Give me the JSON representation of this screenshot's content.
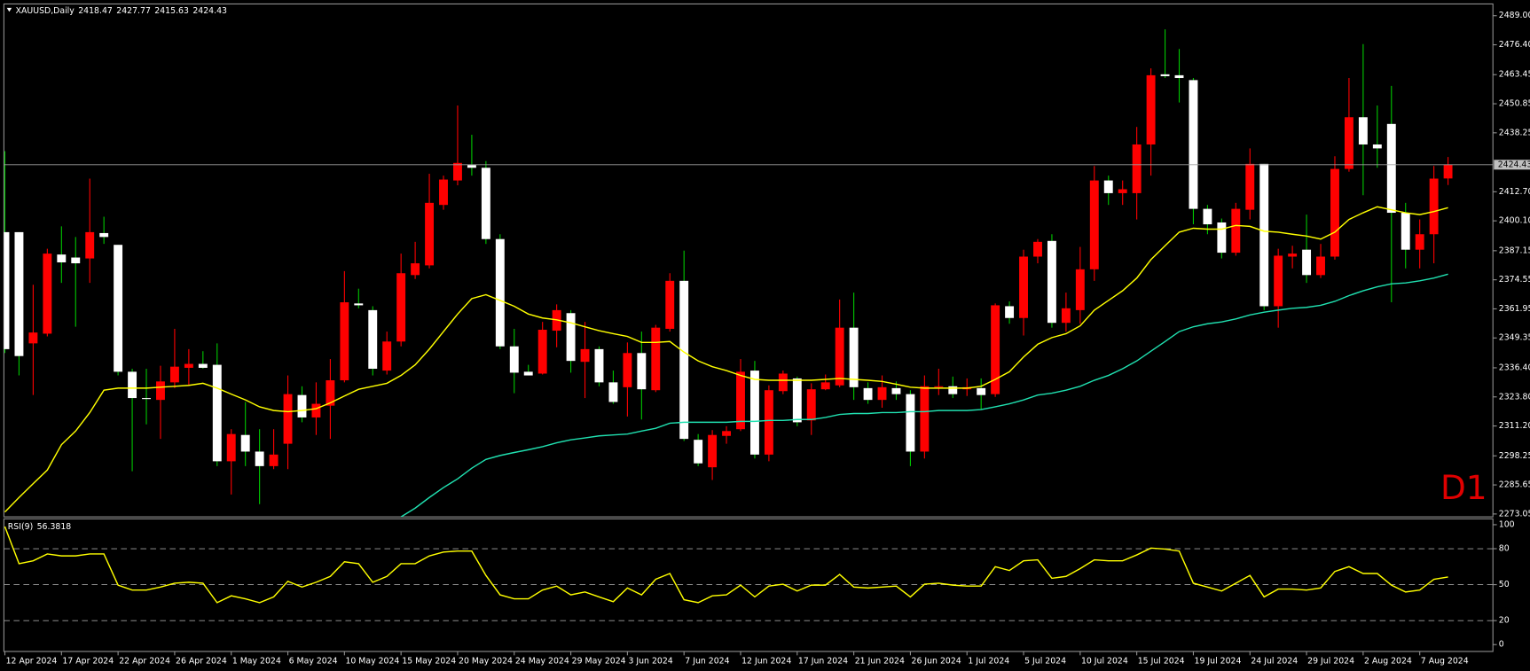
{
  "symbol": "XAUUSD,Daily",
  "timeframe_label": "D1",
  "chart_data": [
    {
      "type": "candlestick",
      "categories": [
        "12 Apr 2024",
        null,
        null,
        null,
        "17 Apr 2024",
        null,
        null,
        null,
        "22 Apr 2024",
        null,
        null,
        null,
        "26 Apr 2024",
        null,
        null,
        null,
        "1 May 2024",
        null,
        null,
        null,
        "6 May 2024",
        null,
        null,
        null,
        "10 May 2024",
        null,
        null,
        null,
        "15 May 2024",
        null,
        null,
        null,
        "20 May 2024",
        null,
        null,
        null,
        "24 May 2024",
        null,
        null,
        null,
        "29 May 2024",
        null,
        null,
        null,
        "3 Jun 2024",
        null,
        null,
        null,
        "7 Jun 2024",
        null,
        null,
        null,
        "12 Jun 2024",
        null,
        null,
        null,
        "17 Jun 2024",
        null,
        null,
        null,
        "21 Jun 2024",
        null,
        null,
        null,
        "26 Jun 2024",
        null,
        null,
        null,
        "1 Jul 2024",
        null,
        null,
        null,
        "5 Jul 2024",
        null,
        null,
        null,
        "10 Jul 2024",
        null,
        null,
        null,
        "15 Jul 2024",
        null,
        null,
        null,
        "19 Jul 2024",
        null,
        null,
        null,
        "24 Jul 2024",
        null,
        null,
        null,
        "29 Jul 2024",
        null,
        null,
        null,
        "2 Aug 2024",
        null,
        null,
        null,
        "7 Aug 2024",
        null,
        null
      ],
      "open": [
        2395.2,
        2395.2,
        2347.0,
        2351.2,
        2385.5,
        2384.2,
        2383.8,
        2394.8,
        2389.7,
        2334.7,
        2323.3,
        2322.5,
        2330.1,
        2336.4,
        2338.1,
        2337.7,
        2295.9,
        2307.3,
        2300.1,
        2293.8,
        2303.5,
        2324.6,
        2314.9,
        2320.0,
        2331.0,
        2364.3,
        2361.4,
        2335.2,
        2347.8,
        2376.6,
        2380.8,
        2407.0,
        2417.6,
        2424.3,
        2423.1,
        2392.2,
        2345.7,
        2334.7,
        2333.9,
        2352.5,
        2360.1,
        2339.0,
        2344.5,
        2330.1,
        2328.0,
        2342.8,
        2326.7,
        2353.3,
        2374.1,
        2305.2,
        2293.3,
        2306.9,
        2309.8,
        2335.2,
        2298.8,
        2326.3,
        2331.8,
        2313.6,
        2327.1,
        2328.8,
        2353.8,
        2327.6,
        2322.5,
        2327.6,
        2325.0,
        2300.1,
        2328.0,
        2328.4,
        2327.1,
        2327.6,
        2325.0,
        2363.1,
        2358.0,
        2384.6,
        2391.4,
        2355.9,
        2361.4,
        2379.1,
        2417.6,
        2412.1,
        2412.1,
        2433.2,
        2463.6,
        2463.2,
        2461.1,
        2405.3,
        2399.4,
        2386.3,
        2404.9,
        2424.8,
        2363.1,
        2384.6,
        2387.6,
        2376.6,
        2384.6,
        2422.6,
        2445.0,
        2433.2,
        2442.1,
        2403.6,
        2387.6,
        2394.3,
        2418.47
      ],
      "high": [
        2430.3,
        2395.2,
        2372.4,
        2388.0,
        2397.7,
        2393.1,
        2418.4,
        2401.9,
        2389.7,
        2336.0,
        2336.0,
        2337.3,
        2353.3,
        2344.5,
        2343.6,
        2347.0,
        2309.8,
        2321.6,
        2309.8,
        2309.8,
        2333.1,
        2328.4,
        2330.1,
        2340.2,
        2378.3,
        2370.7,
        2363.1,
        2352.1,
        2385.9,
        2391.0,
        2420.5,
        2419.7,
        2450.1,
        2437.4,
        2426.0,
        2394.3,
        2353.3,
        2337.7,
        2356.3,
        2363.9,
        2361.4,
        2356.3,
        2345.7,
        2335.2,
        2347.4,
        2352.1,
        2355.0,
        2377.4,
        2387.2,
        2307.7,
        2309.4,
        2311.1,
        2340.2,
        2339.4,
        2328.8,
        2335.2,
        2332.6,
        2329.7,
        2333.5,
        2366.0,
        2369.0,
        2330.1,
        2333.1,
        2330.5,
        2326.7,
        2333.1,
        2336.0,
        2332.6,
        2331.8,
        2331.8,
        2364.3,
        2365.2,
        2387.6,
        2392.2,
        2394.3,
        2369.0,
        2388.8,
        2423.9,
        2419.7,
        2417.6,
        2440.8,
        2466.2,
        2483.1,
        2474.6,
        2462.0,
        2407.0,
        2401.1,
        2407.9,
        2431.5,
        2424.8,
        2388.0,
        2389.3,
        2402.8,
        2390.1,
        2428.1,
        2462.0,
        2476.7,
        2450.1,
        2458.6,
        2407.9,
        2400.7,
        2423.9,
        2427.77
      ],
      "low": [
        2342.8,
        2333.1,
        2324.6,
        2350.0,
        2373.2,
        2354.2,
        2373.2,
        2390.1,
        2333.1,
        2291.6,
        2311.9,
        2305.6,
        2327.6,
        2328.8,
        2336.0,
        2293.8,
        2281.5,
        2293.8,
        2277.3,
        2292.5,
        2292.5,
        2312.8,
        2307.3,
        2305.6,
        2330.1,
        2362.2,
        2333.1,
        2333.5,
        2345.7,
        2374.9,
        2379.5,
        2404.9,
        2415.5,
        2419.7,
        2390.1,
        2344.5,
        2325.4,
        2333.1,
        2333.5,
        2345.3,
        2334.3,
        2323.3,
        2328.4,
        2320.8,
        2315.3,
        2314.0,
        2325.9,
        2352.1,
        2304.7,
        2293.8,
        2287.8,
        2303.5,
        2309.0,
        2297.1,
        2295.9,
        2325.0,
        2311.1,
        2307.3,
        2326.7,
        2328.0,
        2322.5,
        2320.8,
        2319.1,
        2322.5,
        2293.8,
        2297.1,
        2324.6,
        2323.3,
        2324.2,
        2318.3,
        2323.8,
        2355.5,
        2350.4,
        2381.7,
        2353.8,
        2352.1,
        2355.5,
        2374.1,
        2407.0,
        2407.0,
        2400.7,
        2419.7,
        2462.0,
        2451.4,
        2398.6,
        2394.3,
        2383.8,
        2385.0,
        2400.7,
        2361.4,
        2353.8,
        2379.5,
        2373.2,
        2375.3,
        2383.3,
        2421.4,
        2411.2,
        2423.1,
        2364.8,
        2379.5,
        2379.5,
        2381.7,
        2415.63
      ],
      "close": [
        2344.5,
        2341.5,
        2351.7,
        2385.9,
        2382.1,
        2381.7,
        2395.2,
        2393.1,
        2334.7,
        2323.3,
        2322.9,
        2330.5,
        2336.9,
        2338.1,
        2336.4,
        2295.9,
        2307.7,
        2300.1,
        2293.8,
        2298.8,
        2325.0,
        2314.9,
        2320.8,
        2331.0,
        2364.8,
        2363.5,
        2336.0,
        2347.8,
        2377.4,
        2381.7,
        2407.9,
        2418.0,
        2425.2,
        2423.1,
        2392.2,
        2345.7,
        2334.3,
        2333.1,
        2352.9,
        2361.4,
        2339.4,
        2344.5,
        2330.1,
        2321.6,
        2342.8,
        2327.1,
        2353.8,
        2374.1,
        2305.6,
        2295.0,
        2307.3,
        2309.0,
        2334.7,
        2298.8,
        2326.7,
        2333.9,
        2312.8,
        2327.1,
        2330.1,
        2353.8,
        2328.0,
        2322.5,
        2328.0,
        2325.0,
        2300.1,
        2328.4,
        2328.4,
        2325.0,
        2328.0,
        2324.6,
        2363.5,
        2358.0,
        2384.6,
        2391.0,
        2355.9,
        2362.2,
        2379.1,
        2417.6,
        2412.1,
        2413.8,
        2433.2,
        2463.2,
        2462.8,
        2462.0,
        2405.3,
        2398.6,
        2386.3,
        2405.3,
        2424.8,
        2363.1,
        2385.0,
        2385.9,
        2376.6,
        2384.6,
        2422.6,
        2445.0,
        2433.2,
        2431.5,
        2403.6,
        2387.6,
        2394.3,
        2418.4,
        2424.43
      ],
      "up_color": "#ff0000",
      "down_color": "#ffffff",
      "up_wick_color": "#ff0000",
      "down_wick_color": "#00c800",
      "lines": [
        {
          "color": "#ffff00",
          "values": [
            2273.9,
            2280.2,
            2286.2,
            2292.1,
            2303.1,
            2309.0,
            2317.0,
            2326.7,
            2327.6,
            2327.6,
            2327.6,
            2328.0,
            2328.4,
            2328.8,
            2329.7,
            2327.6,
            2325.0,
            2322.5,
            2319.5,
            2317.9,
            2317.4,
            2317.9,
            2318.7,
            2321.2,
            2324.2,
            2327.1,
            2328.4,
            2329.7,
            2333.1,
            2337.7,
            2344.5,
            2352.1,
            2359.7,
            2366.4,
            2368.1,
            2365.6,
            2363.1,
            2359.7,
            2358.0,
            2357.2,
            2355.9,
            2354.2,
            2352.5,
            2351.2,
            2350.0,
            2347.4,
            2347.4,
            2347.8,
            2343.2,
            2339.4,
            2336.9,
            2335.2,
            2333.1,
            2331.4,
            2331.0,
            2331.0,
            2331.0,
            2331.0,
            2331.4,
            2331.8,
            2331.4,
            2331.0,
            2330.5,
            2329.3,
            2328.0,
            2327.6,
            2327.6,
            2327.6,
            2327.6,
            2328.4,
            2331.4,
            2334.7,
            2341.1,
            2346.6,
            2349.5,
            2351.2,
            2354.6,
            2361.4,
            2365.6,
            2369.8,
            2375.3,
            2383.3,
            2389.3,
            2395.2,
            2396.9,
            2396.5,
            2396.5,
            2398.1,
            2397.7,
            2395.6,
            2395.2,
            2394.3,
            2393.5,
            2392.2,
            2395.2,
            2400.7,
            2403.6,
            2406.2,
            2404.9,
            2403.6,
            2402.8,
            2404.1,
            2405.8
          ]
        },
        {
          "color": "#20e0b0",
          "values": [
            null,
            null,
            null,
            null,
            null,
            null,
            null,
            null,
            null,
            null,
            null,
            null,
            null,
            null,
            null,
            null,
            null,
            null,
            null,
            null,
            null,
            null,
            null,
            null,
            null,
            null,
            null,
            null,
            2271.8,
            2275.6,
            2280.2,
            2284.5,
            2288.3,
            2292.9,
            2296.7,
            2298.4,
            2299.7,
            2300.9,
            2302.2,
            2303.9,
            2305.2,
            2306.0,
            2306.9,
            2307.3,
            2307.7,
            2309.0,
            2310.2,
            2312.4,
            2312.8,
            2312.8,
            2312.8,
            2312.8,
            2313.2,
            2313.2,
            2313.6,
            2313.6,
            2314.0,
            2314.0,
            2314.9,
            2316.2,
            2316.6,
            2316.6,
            2317.0,
            2317.0,
            2317.4,
            2317.4,
            2317.9,
            2317.9,
            2317.9,
            2318.3,
            2319.5,
            2320.8,
            2322.5,
            2324.6,
            2325.4,
            2326.7,
            2328.4,
            2331.0,
            2333.1,
            2336.0,
            2339.4,
            2343.6,
            2347.8,
            2352.1,
            2354.2,
            2355.5,
            2356.3,
            2357.6,
            2359.3,
            2360.5,
            2361.4,
            2362.2,
            2362.6,
            2363.5,
            2365.2,
            2367.7,
            2369.8,
            2371.5,
            2372.8,
            2373.2,
            2374.1,
            2375.3,
            2377.0
          ]
        }
      ],
      "ylim": [
        2271.8,
        2494.1
      ],
      "yticks": [
        {
          "value": 2489,
          "label": "2489.00"
        },
        {
          "value": 2476.4,
          "label": "2476.40"
        },
        {
          "value": 2463.45,
          "label": "2463.45"
        },
        {
          "value": 2450.85,
          "label": "2450.85"
        },
        {
          "value": 2438.25,
          "label": "2438.25"
        },
        {
          "value": 2412.7,
          "label": "2412.70"
        },
        {
          "value": 2400.1,
          "label": "2400.10"
        },
        {
          "value": 2387.15,
          "label": "2387.15"
        },
        {
          "value": 2374.55,
          "label": "2374.55"
        },
        {
          "value": 2361.95,
          "label": "2361.95"
        },
        {
          "value": 2349.35,
          "label": "2349.35"
        },
        {
          "value": 2336.4,
          "label": "2336.40"
        },
        {
          "value": 2323.8,
          "label": "2323.80"
        },
        {
          "value": 2311.2,
          "label": "2311.20"
        },
        {
          "value": 2298.25,
          "label": "2298.25"
        },
        {
          "value": 2285.65,
          "label": "2285.65"
        },
        {
          "value": 2273.05,
          "label": "2273.05"
        }
      ]
    },
    {
      "type": "line",
      "title": "RSI(9)",
      "color": "#ffff00",
      "values": [
        98.4,
        67.5,
        69.9,
        75.6,
        74.0,
        74.0,
        75.6,
        75.6,
        49.6,
        45.5,
        45.5,
        48.0,
        51.2,
        52.0,
        51.2,
        35.0,
        40.7,
        38.2,
        35.0,
        39.8,
        52.8,
        48.0,
        52.0,
        56.9,
        69.1,
        67.5,
        52.0,
        56.9,
        67.5,
        67.5,
        74.0,
        77.2,
        78.0,
        78.0,
        57.7,
        41.5,
        38.2,
        38.2,
        45.5,
        48.8,
        41.5,
        43.9,
        39.8,
        35.8,
        47.2,
        41.5,
        54.5,
        59.3,
        37.4,
        35.0,
        40.7,
        41.5,
        49.6,
        39.8,
        48.8,
        50.4,
        44.7,
        49.6,
        49.6,
        58.5,
        48.0,
        47.2,
        48.0,
        48.8,
        39.8,
        50.4,
        51.2,
        49.6,
        48.8,
        48.8,
        65.0,
        61.8,
        69.9,
        70.7,
        55.3,
        56.9,
        63.4,
        70.7,
        69.9,
        69.9,
        74.8,
        80.5,
        79.7,
        78.0,
        51.2,
        48.0,
        44.7,
        51.2,
        57.7,
        39.8,
        46.3,
        46.3,
        45.5,
        47.2,
        61.0,
        65.0,
        59.3,
        59.3,
        49.6,
        43.9,
        45.5,
        54.5,
        56.3818
      ],
      "ylim": [
        -5.7,
        104.9
      ],
      "yticks": [
        100,
        80,
        50,
        20,
        0
      ],
      "levels": [
        80,
        50,
        20
      ]
    }
  ]
}
